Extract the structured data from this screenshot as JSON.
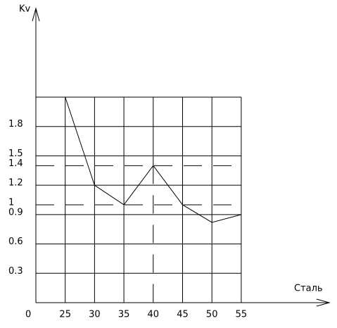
{
  "chart_data": {
    "type": "line",
    "y_axis_label": "Kv",
    "x_axis_label": "Сталь",
    "origin_label": "0",
    "categories": [
      "25",
      "30",
      "35",
      "40",
      "45",
      "50",
      "55"
    ],
    "values": [
      2.1,
      1.2,
      1.0,
      1.4,
      1.0,
      0.82,
      0.9
    ],
    "color": "#000000",
    "ylim": [
      0,
      2.1
    ],
    "yticks": [
      0.3,
      0.6,
      0.9,
      1.0,
      {
        "value": 1.2,
        "label": "1.2"
      },
      1.4,
      1.5,
      1.8
    ],
    "dashed_levels": [
      1.4,
      1.0
    ],
    "grid": true
  }
}
